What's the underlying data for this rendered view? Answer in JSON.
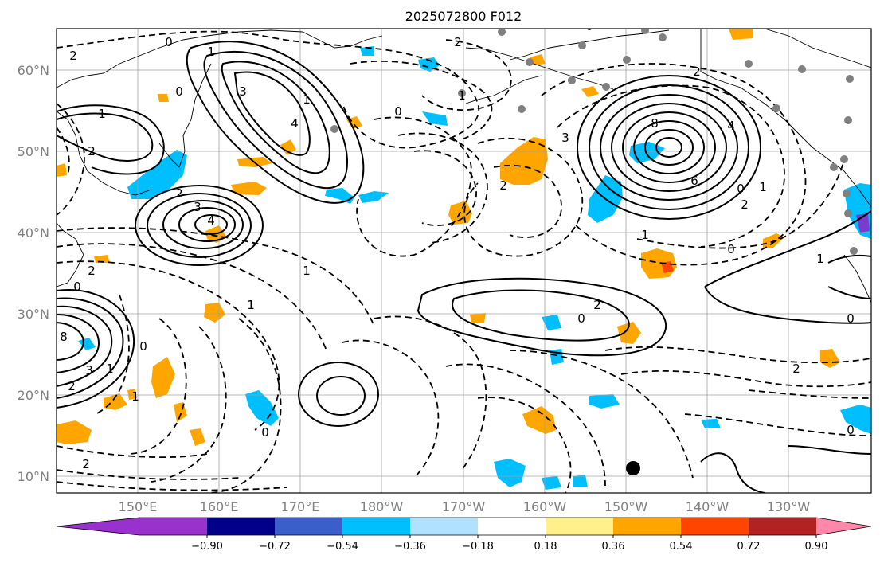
{
  "title": "2025072800 F012",
  "lat_labels": [
    "60°N",
    "50°N",
    "40°N",
    "30°N",
    "20°N",
    "10°N"
  ],
  "lon_labels": [
    "150°E",
    "160°E",
    "170°E",
    "180°W",
    "170°W",
    "160°W",
    "150°W",
    "140°W",
    "130°W"
  ],
  "colorbar": {
    "ticks": [
      "−0.90",
      "−0.72",
      "−0.54",
      "−0.36",
      "−0.18",
      "0.18",
      "0.36",
      "0.54",
      "0.72",
      "0.90"
    ],
    "colors": [
      "#9932cc",
      "#00008b",
      "#3a5fcd",
      "#00bfff",
      "#b0e2ff",
      "#ffffff",
      "#fff08a",
      "#ffa500",
      "#ff4500",
      "#b22222",
      "#ff88aa"
    ]
  },
  "contour_labels": [
    "2",
    "0",
    "1",
    "2",
    "3",
    "4",
    "0",
    "1",
    "2",
    "3",
    "4",
    "1",
    "0",
    "2",
    "0",
    "1",
    "2",
    "3",
    "8",
    "6",
    "4",
    "2",
    "0",
    "1",
    "2",
    "1",
    "0",
    "1",
    "2",
    "1",
    "2",
    "0",
    "0",
    "1",
    "2",
    "0",
    "1",
    "8",
    "3",
    "0",
    "1",
    "2",
    "0",
    "0",
    "2"
  ],
  "station_marker_color": "#808080"
}
